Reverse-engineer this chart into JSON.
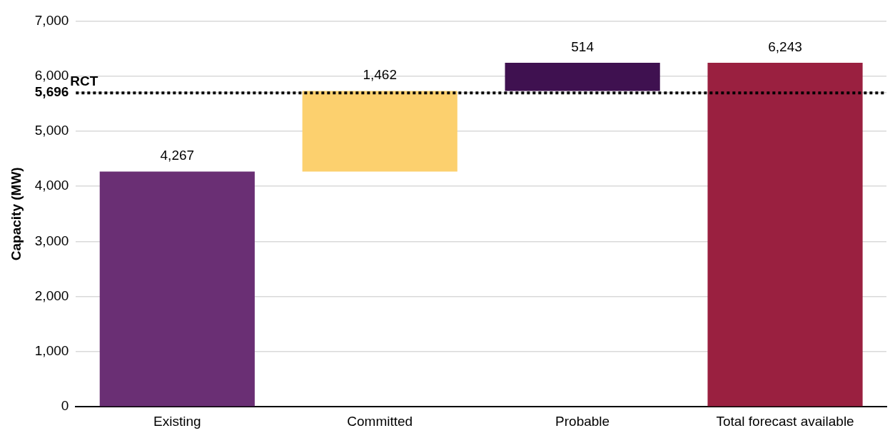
{
  "chart_data": {
    "type": "bar",
    "ylabel": "Capacity (MW)",
    "categories": [
      "Existing",
      "Committed",
      "Probable",
      "Total forecast available"
    ],
    "values": [
      4267,
      1462,
      514,
      6243
    ],
    "base": [
      0,
      4267,
      5729,
      0
    ],
    "colors": [
      "#6a2f74",
      "#fcd06e",
      "#3f1150",
      "#9a2040"
    ],
    "ylim": [
      0,
      7000
    ],
    "yticks": [
      0,
      {
        "value": 1000,
        "label": "1,000"
      },
      {
        "value": 2000,
        "label": "2,000"
      },
      {
        "value": 3000,
        "label": "3,000"
      },
      {
        "value": 4000,
        "label": "4,000"
      },
      {
        "value": 5000,
        "label": "5,000"
      },
      {
        "value": 5696,
        "label": "5,696"
      },
      {
        "value": 6000,
        "label": "6,000"
      },
      {
        "value": 7000,
        "label": "7,000"
      }
    ],
    "ref_lines": [
      {
        "axis": "y",
        "value": 5696,
        "label": "RCT",
        "color": "#000000",
        "line_style": "dotted"
      }
    ],
    "value_labels": [
      "4,267",
      "1,462",
      "514",
      "6,243"
    ],
    "grid": "y",
    "legend": false
  }
}
